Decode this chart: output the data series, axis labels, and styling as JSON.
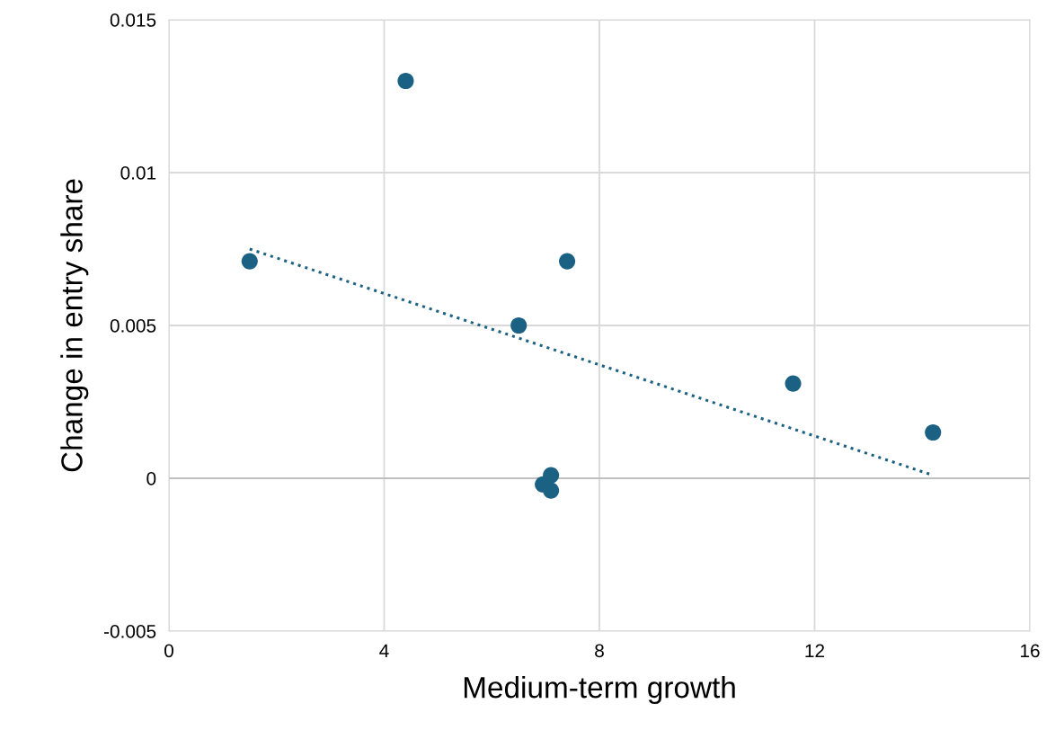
{
  "chart_data": {
    "type": "scatter",
    "xlabel": "Medium-term growth",
    "ylabel": "Change in entry share",
    "xlim": [
      0,
      16
    ],
    "xticks": [
      0,
      4,
      8,
      12,
      16
    ],
    "ylim": [
      -0.005,
      0.015
    ],
    "yticks": [
      -0.005,
      0,
      0.005,
      0.01,
      0.015
    ],
    "grid": true,
    "series": [
      {
        "marker": "circle",
        "color": "#1b6183",
        "x": [
          1.5,
          4.4,
          6.5,
          7.4,
          11.6,
          14.2,
          7.1,
          6.95,
          7.1
        ],
        "values": [
          0.0071,
          0.013,
          0.005,
          0.0071,
          0.0031,
          0.0015,
          0.0001,
          -0.0002,
          -0.0004
        ]
      },
      {
        "type": "line",
        "color": "#1b6183",
        "line_style": "dotted",
        "x": [
          1.5,
          14.2
        ],
        "values": [
          0.0075,
          0.0001
        ]
      }
    ]
  }
}
